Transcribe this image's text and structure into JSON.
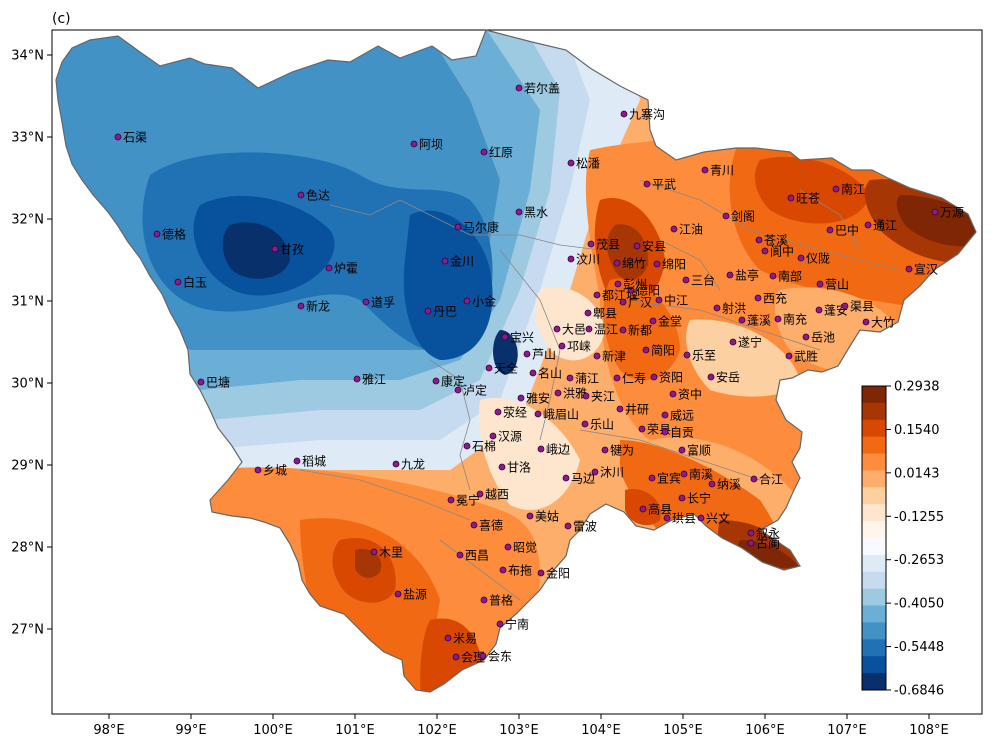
{
  "panel_label": "(c)",
  "map": {
    "lon_range": [
      97.3,
      108.6
    ],
    "lat_range": [
      26.05,
      34.3
    ],
    "x_ticks": [
      "98°E",
      "99°E",
      "100°E",
      "101°E",
      "102°E",
      "103°E",
      "104°E",
      "105°E",
      "106°E",
      "107°E",
      "108°E"
    ],
    "y_ticks": [
      "27°N",
      "28°N",
      "29°N",
      "30°N",
      "31°N",
      "32°N",
      "33°N",
      "34°N"
    ]
  },
  "colorbar": {
    "ticks": [
      "0.2938",
      "0.1540",
      "0.0143",
      "-0.1255",
      "-0.2653",
      "-0.4050",
      "-0.5448",
      "-0.6846"
    ],
    "colors": [
      "#7f2704",
      "#a63603",
      "#d94801",
      "#f16913",
      "#fd8d3c",
      "#fdae6b",
      "#fdd0a2",
      "#fee6ce",
      "#fff5eb",
      "#f7fbff",
      "#deebf7",
      "#c6dbef",
      "#9ecae1",
      "#6baed6",
      "#4292c6",
      "#2171b5",
      "#08519c",
      "#08306b"
    ]
  },
  "cities": [
    {
      "name": "若尔盖"
    },
    {
      "name": "九寨沟"
    },
    {
      "name": "石渠"
    },
    {
      "name": "阿坝"
    },
    {
      "name": "红原"
    },
    {
      "name": "松潘"
    },
    {
      "name": "青川"
    },
    {
      "name": "平武"
    },
    {
      "name": "色达"
    },
    {
      "name": "黑水"
    },
    {
      "name": "马尔康"
    },
    {
      "name": "旺苍"
    },
    {
      "name": "南江"
    },
    {
      "name": "剑阁"
    },
    {
      "name": "万源"
    },
    {
      "name": "德格"
    },
    {
      "name": "甘孜"
    },
    {
      "name": "炉霍"
    },
    {
      "name": "金川"
    },
    {
      "name": "茂县"
    },
    {
      "name": "安县"
    },
    {
      "name": "江油"
    },
    {
      "name": "苍溪"
    },
    {
      "name": "巴中"
    },
    {
      "name": "通江"
    },
    {
      "name": "阆中"
    },
    {
      "name": "仪陇"
    },
    {
      "name": "宣汉"
    },
    {
      "name": "汶川"
    },
    {
      "name": "绵竹"
    },
    {
      "name": "绵阳"
    },
    {
      "name": "盐亭"
    },
    {
      "name": "南部"
    },
    {
      "name": "营山"
    },
    {
      "name": "白玉"
    },
    {
      "name": "新龙"
    },
    {
      "name": "道孚"
    },
    {
      "name": "丹巴"
    },
    {
      "name": "小金"
    },
    {
      "name": "都江堰"
    },
    {
      "name": "德阳"
    },
    {
      "name": "彭州"
    },
    {
      "name": "三台"
    },
    {
      "name": "郫县"
    },
    {
      "name": "广汉"
    },
    {
      "name": "中江"
    },
    {
      "name": "射洪"
    },
    {
      "name": "西充"
    },
    {
      "name": "蓬安"
    },
    {
      "name": "渠县"
    },
    {
      "name": "温江"
    },
    {
      "name": "金堂"
    },
    {
      "name": "南充"
    },
    {
      "name": "大竹"
    },
    {
      "name": "大邑"
    },
    {
      "name": "新都"
    },
    {
      "name": "蓬溪"
    },
    {
      "name": "岳池"
    },
    {
      "name": "宝兴"
    },
    {
      "name": "邛崃"
    },
    {
      "name": "简阳"
    },
    {
      "name": "遂宁"
    },
    {
      "name": "武胜"
    },
    {
      "name": "芦山"
    },
    {
      "name": "新津"
    },
    {
      "name": "乐至"
    },
    {
      "name": "巴塘"
    },
    {
      "name": "雅江"
    },
    {
      "name": "康定"
    },
    {
      "name": "天全"
    },
    {
      "name": "名山"
    },
    {
      "name": "蒲江"
    },
    {
      "name": "仁寿"
    },
    {
      "name": "资阳"
    },
    {
      "name": "安岳"
    },
    {
      "name": "泸定"
    },
    {
      "name": "雅安"
    },
    {
      "name": "洪雅"
    },
    {
      "name": "夹江"
    },
    {
      "name": "资中"
    },
    {
      "name": "荥经"
    },
    {
      "name": "峨眉山"
    },
    {
      "name": "井研"
    },
    {
      "name": "威远"
    },
    {
      "name": "汉源"
    },
    {
      "name": "乐山"
    },
    {
      "name": "荣县"
    },
    {
      "name": "自贡"
    },
    {
      "name": "石棉"
    },
    {
      "name": "峨边"
    },
    {
      "name": "犍为"
    },
    {
      "name": "富顺"
    },
    {
      "name": "乡城"
    },
    {
      "name": "稻城"
    },
    {
      "name": "九龙"
    },
    {
      "name": "甘洛"
    },
    {
      "name": "马边"
    },
    {
      "name": "沐川"
    },
    {
      "name": "宜宾"
    },
    {
      "name": "南溪"
    },
    {
      "name": "纳溪"
    },
    {
      "name": "合江"
    },
    {
      "name": "冕宁"
    },
    {
      "name": "越西"
    },
    {
      "name": "长宁"
    },
    {
      "name": "高县"
    },
    {
      "name": "兴文"
    },
    {
      "name": "美姑"
    },
    {
      "name": "珙县"
    },
    {
      "name": "叙永"
    },
    {
      "name": "喜德"
    },
    {
      "name": "雷波"
    },
    {
      "name": "古蔺"
    },
    {
      "name": "木里"
    },
    {
      "name": "西昌"
    },
    {
      "name": "昭觉"
    },
    {
      "name": "布拖"
    },
    {
      "name": "金阳"
    },
    {
      "name": "盐源"
    },
    {
      "name": "普格"
    },
    {
      "name": "宁南"
    },
    {
      "name": "米易"
    },
    {
      "name": "会理"
    },
    {
      "name": "会东"
    }
  ]
}
